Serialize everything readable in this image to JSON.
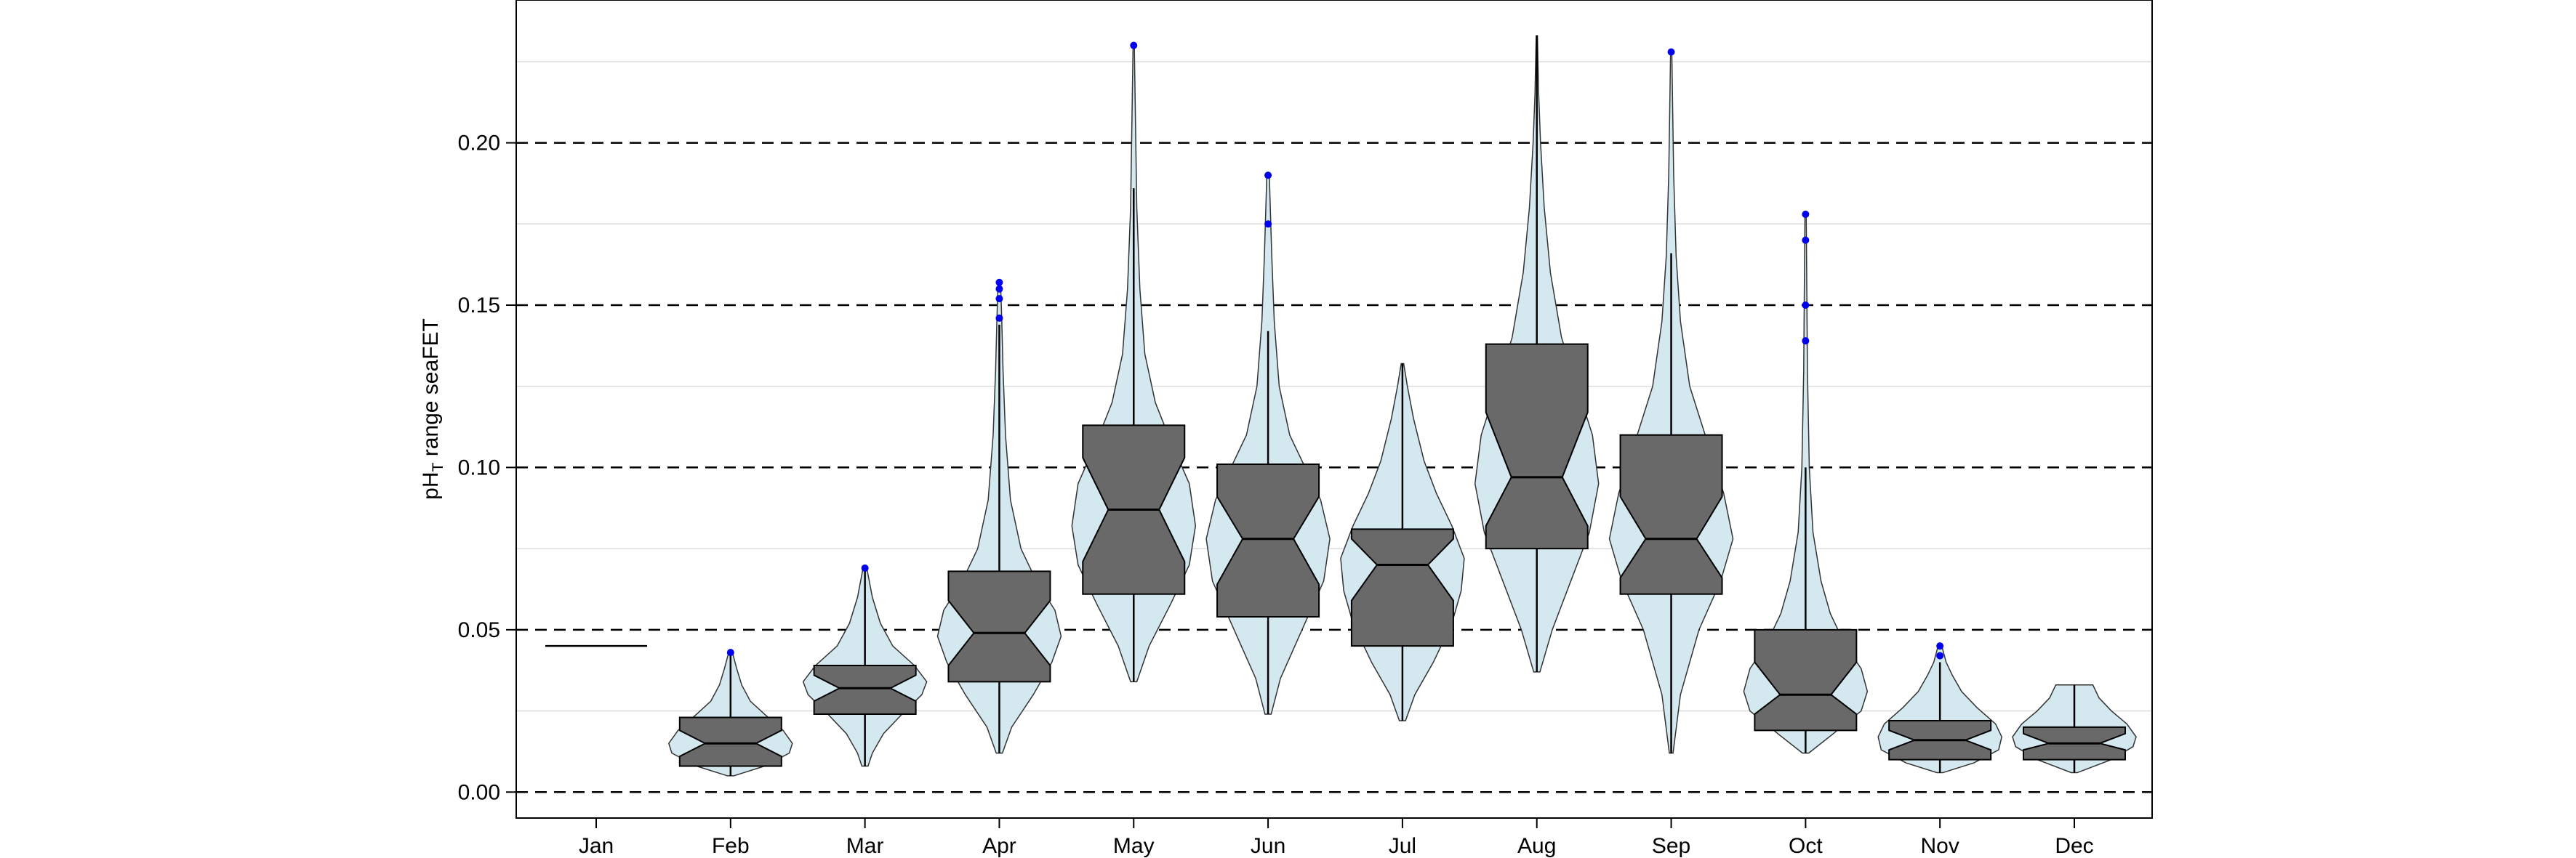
{
  "chart_data": {
    "type": "violin-boxplot",
    "title": "",
    "xlabel": "",
    "ylabel": {
      "prefix": "pH",
      "subscript": "T",
      "suffix": " range seaFET"
    },
    "ylim": [
      -0.008,
      0.244
    ],
    "yticks": [
      0.0,
      0.05,
      0.1,
      0.15,
      0.2
    ],
    "ytick_labels": [
      "0.00",
      "0.05",
      "0.10",
      "0.15",
      "0.20"
    ],
    "dashed_reference_lines": [
      0.0,
      0.05,
      0.1,
      0.15,
      0.2
    ],
    "minor_gridlines": [
      0.025,
      0.075,
      0.125,
      0.175,
      0.225
    ],
    "grid": true,
    "colors": {
      "violin_fill": "#d4e8f0",
      "box_fill": "#696969",
      "outlier": "#0000ee",
      "gridline": "#dddddd"
    },
    "categories": [
      "Jan",
      "Feb",
      "Mar",
      "Apr",
      "May",
      "Jun",
      "Jul",
      "Aug",
      "Sep",
      "Oct",
      "Nov",
      "Dec"
    ],
    "boxes": [
      {
        "month": "Jan",
        "q1": 0.045,
        "median": 0.045,
        "q3": 0.045,
        "notch_lo": 0.045,
        "notch_hi": 0.045,
        "whisker_lo": 0.045,
        "whisker_hi": 0.045
      },
      {
        "month": "Feb",
        "q1": 0.008,
        "median": 0.015,
        "q3": 0.023,
        "notch_lo": 0.011,
        "notch_hi": 0.019,
        "whisker_lo": 0.005,
        "whisker_hi": 0.043
      },
      {
        "month": "Mar",
        "q1": 0.024,
        "median": 0.032,
        "q3": 0.039,
        "notch_lo": 0.028,
        "notch_hi": 0.036,
        "whisker_lo": 0.008,
        "whisker_hi": 0.069
      },
      {
        "month": "Apr",
        "q1": 0.034,
        "median": 0.049,
        "q3": 0.068,
        "notch_lo": 0.039,
        "notch_hi": 0.059,
        "whisker_lo": 0.012,
        "whisker_hi": 0.144
      },
      {
        "month": "May",
        "q1": 0.061,
        "median": 0.087,
        "q3": 0.113,
        "notch_lo": 0.071,
        "notch_hi": 0.103,
        "whisker_lo": 0.034,
        "whisker_hi": 0.186
      },
      {
        "month": "Jun",
        "q1": 0.054,
        "median": 0.078,
        "q3": 0.101,
        "notch_lo": 0.064,
        "notch_hi": 0.091,
        "whisker_lo": 0.024,
        "whisker_hi": 0.142
      },
      {
        "month": "Jul",
        "q1": 0.045,
        "median": 0.07,
        "q3": 0.081,
        "notch_lo": 0.059,
        "notch_hi": 0.078,
        "whisker_lo": 0.022,
        "whisker_hi": 0.132
      },
      {
        "month": "Aug",
        "q1": 0.075,
        "median": 0.097,
        "q3": 0.138,
        "notch_lo": 0.082,
        "notch_hi": 0.117,
        "whisker_lo": 0.037,
        "whisker_hi": 0.233
      },
      {
        "month": "Sep",
        "q1": 0.061,
        "median": 0.078,
        "q3": 0.11,
        "notch_lo": 0.066,
        "notch_hi": 0.091,
        "whisker_lo": 0.012,
        "whisker_hi": 0.166
      },
      {
        "month": "Oct",
        "q1": 0.019,
        "median": 0.03,
        "q3": 0.05,
        "notch_lo": 0.024,
        "notch_hi": 0.04,
        "whisker_lo": 0.012,
        "whisker_hi": 0.1
      },
      {
        "month": "Nov",
        "q1": 0.01,
        "median": 0.016,
        "q3": 0.022,
        "notch_lo": 0.013,
        "notch_hi": 0.019,
        "whisker_lo": 0.006,
        "whisker_hi": 0.04
      },
      {
        "month": "Dec",
        "q1": 0.01,
        "median": 0.015,
        "q3": 0.02,
        "notch_lo": 0.013,
        "notch_hi": 0.018,
        "whisker_lo": 0.006,
        "whisker_hi": 0.033
      }
    ],
    "violins": [
      {
        "month": "Feb",
        "profile": [
          [
            0.005,
            0.05
          ],
          [
            0.008,
            0.55
          ],
          [
            0.012,
            0.95
          ],
          [
            0.015,
            1.0
          ],
          [
            0.019,
            0.85
          ],
          [
            0.024,
            0.55
          ],
          [
            0.028,
            0.32
          ],
          [
            0.033,
            0.18
          ],
          [
            0.038,
            0.1
          ],
          [
            0.043,
            0.03
          ]
        ]
      },
      {
        "month": "Mar",
        "profile": [
          [
            0.008,
            0.05
          ],
          [
            0.012,
            0.12
          ],
          [
            0.018,
            0.3
          ],
          [
            0.024,
            0.6
          ],
          [
            0.03,
            0.92
          ],
          [
            0.034,
            1.0
          ],
          [
            0.039,
            0.8
          ],
          [
            0.045,
            0.45
          ],
          [
            0.052,
            0.25
          ],
          [
            0.06,
            0.12
          ],
          [
            0.069,
            0.03
          ]
        ]
      },
      {
        "month": "Apr",
        "profile": [
          [
            0.012,
            0.05
          ],
          [
            0.02,
            0.2
          ],
          [
            0.03,
            0.55
          ],
          [
            0.04,
            0.85
          ],
          [
            0.048,
            1.0
          ],
          [
            0.056,
            0.9
          ],
          [
            0.065,
            0.6
          ],
          [
            0.075,
            0.35
          ],
          [
            0.09,
            0.18
          ],
          [
            0.11,
            0.1
          ],
          [
            0.13,
            0.06
          ],
          [
            0.145,
            0.04
          ],
          [
            0.157,
            0.02
          ]
        ]
      },
      {
        "month": "May",
        "profile": [
          [
            0.034,
            0.05
          ],
          [
            0.045,
            0.25
          ],
          [
            0.058,
            0.6
          ],
          [
            0.07,
            0.9
          ],
          [
            0.082,
            1.0
          ],
          [
            0.095,
            0.9
          ],
          [
            0.108,
            0.6
          ],
          [
            0.12,
            0.35
          ],
          [
            0.135,
            0.18
          ],
          [
            0.155,
            0.1
          ],
          [
            0.18,
            0.05
          ],
          [
            0.205,
            0.03
          ],
          [
            0.23,
            0.01
          ]
        ]
      },
      {
        "month": "Jun",
        "profile": [
          [
            0.024,
            0.05
          ],
          [
            0.035,
            0.2
          ],
          [
            0.05,
            0.55
          ],
          [
            0.065,
            0.9
          ],
          [
            0.078,
            1.0
          ],
          [
            0.09,
            0.85
          ],
          [
            0.1,
            0.6
          ],
          [
            0.11,
            0.35
          ],
          [
            0.125,
            0.18
          ],
          [
            0.145,
            0.1
          ],
          [
            0.165,
            0.06
          ],
          [
            0.19,
            0.02
          ]
        ]
      },
      {
        "month": "Jul",
        "profile": [
          [
            0.022,
            0.05
          ],
          [
            0.03,
            0.2
          ],
          [
            0.04,
            0.5
          ],
          [
            0.052,
            0.8
          ],
          [
            0.062,
            0.95
          ],
          [
            0.072,
            1.0
          ],
          [
            0.082,
            0.8
          ],
          [
            0.092,
            0.55
          ],
          [
            0.102,
            0.35
          ],
          [
            0.115,
            0.18
          ],
          [
            0.125,
            0.08
          ],
          [
            0.132,
            0.02
          ]
        ]
      },
      {
        "month": "Aug",
        "profile": [
          [
            0.037,
            0.05
          ],
          [
            0.05,
            0.25
          ],
          [
            0.065,
            0.55
          ],
          [
            0.08,
            0.85
          ],
          [
            0.095,
            1.0
          ],
          [
            0.11,
            0.9
          ],
          [
            0.125,
            0.65
          ],
          [
            0.14,
            0.4
          ],
          [
            0.16,
            0.22
          ],
          [
            0.18,
            0.12
          ],
          [
            0.2,
            0.06
          ],
          [
            0.215,
            0.03
          ],
          [
            0.233,
            0.01
          ]
        ]
      },
      {
        "month": "Sep",
        "profile": [
          [
            0.012,
            0.03
          ],
          [
            0.03,
            0.15
          ],
          [
            0.05,
            0.45
          ],
          [
            0.065,
            0.8
          ],
          [
            0.078,
            1.0
          ],
          [
            0.092,
            0.85
          ],
          [
            0.11,
            0.55
          ],
          [
            0.125,
            0.3
          ],
          [
            0.145,
            0.15
          ],
          [
            0.165,
            0.08
          ],
          [
            0.19,
            0.04
          ],
          [
            0.215,
            0.02
          ],
          [
            0.228,
            0.01
          ]
        ]
      },
      {
        "month": "Oct",
        "profile": [
          [
            0.012,
            0.05
          ],
          [
            0.018,
            0.45
          ],
          [
            0.025,
            0.9
          ],
          [
            0.031,
            1.0
          ],
          [
            0.038,
            0.9
          ],
          [
            0.045,
            0.65
          ],
          [
            0.055,
            0.4
          ],
          [
            0.065,
            0.25
          ],
          [
            0.08,
            0.12
          ],
          [
            0.1,
            0.06
          ],
          [
            0.13,
            0.03
          ],
          [
            0.155,
            0.02
          ],
          [
            0.178,
            0.01
          ]
        ]
      },
      {
        "month": "Nov",
        "profile": [
          [
            0.006,
            0.05
          ],
          [
            0.009,
            0.55
          ],
          [
            0.013,
            0.95
          ],
          [
            0.017,
            1.0
          ],
          [
            0.021,
            0.9
          ],
          [
            0.026,
            0.6
          ],
          [
            0.031,
            0.35
          ],
          [
            0.036,
            0.2
          ],
          [
            0.04,
            0.1
          ],
          [
            0.045,
            0.03
          ]
        ]
      },
      {
        "month": "Dec",
        "profile": [
          [
            0.006,
            0.05
          ],
          [
            0.01,
            0.6
          ],
          [
            0.014,
            0.95
          ],
          [
            0.017,
            1.0
          ],
          [
            0.021,
            0.85
          ],
          [
            0.025,
            0.6
          ],
          [
            0.029,
            0.4
          ],
          [
            0.033,
            0.3
          ]
        ]
      }
    ],
    "outliers": [
      {
        "month": "Feb",
        "values": [
          0.043
        ]
      },
      {
        "month": "Mar",
        "values": [
          0.069
        ]
      },
      {
        "month": "Apr",
        "values": [
          0.146,
          0.152,
          0.155,
          0.157
        ]
      },
      {
        "month": "May",
        "values": [
          0.23
        ]
      },
      {
        "month": "Jun",
        "values": [
          0.175,
          0.19
        ]
      },
      {
        "month": "Sep",
        "values": [
          0.228
        ]
      },
      {
        "month": "Oct",
        "values": [
          0.139,
          0.15,
          0.17,
          0.178
        ]
      },
      {
        "month": "Nov",
        "values": [
          0.042,
          0.045
        ]
      }
    ]
  }
}
